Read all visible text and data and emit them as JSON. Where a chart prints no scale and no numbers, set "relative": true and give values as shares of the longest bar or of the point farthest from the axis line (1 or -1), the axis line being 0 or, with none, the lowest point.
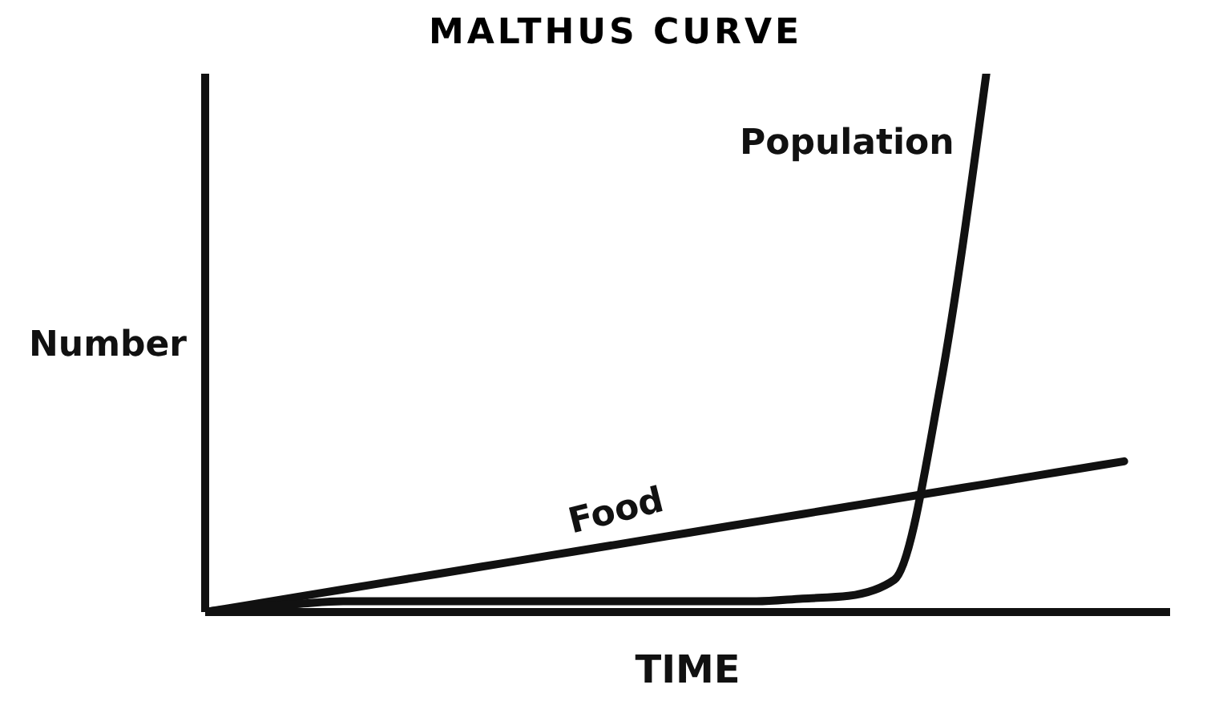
{
  "chart_data": {
    "type": "line",
    "title": "MALTHUS CURVE",
    "xlabel": "TIME",
    "ylabel": "Number",
    "relative": true,
    "legend": false,
    "grid": false,
    "marker": "none",
    "line_style": "solid",
    "categories": [
      null,
      null,
      null,
      null,
      null,
      null,
      null,
      null,
      null,
      null,
      null,
      null,
      null,
      null,
      null,
      null,
      null,
      null,
      null,
      null,
      null,
      null
    ],
    "series": [
      {
        "name": "Food",
        "color": "#111111",
        "values": [
          0,
          0.014,
          0.028,
          0.042,
          0.056,
          0.07,
          0.084,
          0.098,
          0.112,
          0.126,
          0.14,
          0.154,
          0.168,
          0.182,
          0.196,
          0.21,
          0.224,
          0.238,
          0.252,
          0.266,
          0.28,
          null
        ]
      },
      {
        "name": "Population",
        "color": "#111111",
        "values": [
          0,
          0.01,
          0.015,
          0.02,
          0.02,
          0.02,
          0.02,
          0.02,
          0.02,
          0.02,
          0.02,
          0.02,
          0.02,
          0.025,
          0.03,
          0.06,
          0.42,
          1,
          null,
          null,
          null,
          null
        ]
      }
    ]
  }
}
